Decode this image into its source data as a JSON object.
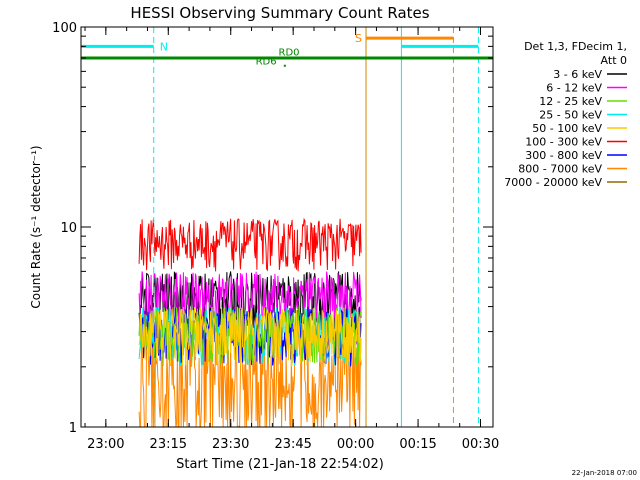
{
  "chart_data": {
    "type": "line",
    "title": "HESSI Observing Summary Count Rates",
    "xlabel": "Start Time (21-Jan-18 22:54:02)",
    "ylabel": "Count Rate (s⁻¹ detector⁻¹)",
    "y_scale": "log",
    "ylim": [
      1,
      100
    ],
    "xlim": [
      "22:54:02",
      "00:33:00"
    ],
    "x_ticks": [
      "23:00",
      "23:15",
      "23:30",
      "23:45",
      "00:00",
      "00:15",
      "00:30"
    ],
    "y_ticks": [
      "1",
      "10",
      "100"
    ],
    "grid": false,
    "legend": {
      "placement": "right",
      "header": [
        "Det 1,3, FDecim 1,",
        "Att 0"
      ],
      "entries": [
        {
          "label": "3 - 6 keV",
          "color": "#000000"
        },
        {
          "label": "6 - 12 keV",
          "color": "#ff00ff"
        },
        {
          "label": "12 - 25 keV",
          "color": "#66dd00"
        },
        {
          "label": "25 - 50 keV",
          "color": "#00eeee"
        },
        {
          "label": "50 - 100 keV",
          "color": "#ffcc00"
        },
        {
          "label": "100 - 300 keV",
          "color": "#ff0000"
        },
        {
          "label": "300 - 800 keV",
          "color": "#0000ff"
        },
        {
          "label": "800 - 7000 keV",
          "color": "#ff8800"
        },
        {
          "label": "7000 - 20000 keV",
          "color": "#996600"
        }
      ]
    },
    "data_interval": {
      "start": "23:08:00",
      "end": "00:01:30"
    },
    "series": [
      {
        "name": "3 - 6 keV",
        "color": "#000000",
        "typical_range": [
          3,
          6
        ]
      },
      {
        "name": "6 - 12 keV",
        "color": "#ff00ff",
        "typical_range": [
          3,
          6
        ]
      },
      {
        "name": "12 - 25 keV",
        "color": "#66dd00",
        "typical_range": [
          2,
          4
        ]
      },
      {
        "name": "25 - 50 keV",
        "color": "#00eeee",
        "typical_range": [
          2,
          4
        ]
      },
      {
        "name": "50 - 100 keV",
        "color": "#ffcc00",
        "typical_range": [
          2,
          4
        ]
      },
      {
        "name": "100 - 300 keV",
        "color": "#ff0000",
        "typical_range": [
          6,
          11
        ]
      },
      {
        "name": "300 - 800 keV",
        "color": "#0000ff",
        "typical_range": [
          2,
          4
        ]
      },
      {
        "name": "800 - 7000 keV",
        "color": "#ff8800",
        "typical_range": [
          1,
          3
        ]
      },
      {
        "name": "7000 - 20000 keV",
        "color": "#996600",
        "typical_range": [
          1,
          1
        ]
      }
    ],
    "markers": {
      "vertical_lines": [
        {
          "time": "22:54:02",
          "color": "#00eeee",
          "style": "solid"
        },
        {
          "time": "23:11:30",
          "color": "#00eeee",
          "style": "dashed"
        },
        {
          "time": "00:02:30",
          "color": "#cc8800",
          "style": "solid"
        },
        {
          "time": "00:11:00",
          "color": "#00eeee",
          "style": "solid"
        },
        {
          "time": "00:23:30",
          "color": "#ff8800",
          "style": "dashed"
        },
        {
          "time": "00:29:30",
          "color": "#00eeee",
          "style": "dashed"
        }
      ],
      "bars": [
        {
          "label": "N",
          "color": "#00eeee",
          "start": "22:54:02",
          "end": "23:11:30",
          "y": 80
        },
        {
          "label": "",
          "color": "#00eeee",
          "start": "00:11:00",
          "end": "00:29:30",
          "y": 80
        },
        {
          "label": "S",
          "color": "#ff8800",
          "start": "00:02:30",
          "end": "00:23:30",
          "y": 88
        },
        {
          "label": "",
          "color": "#008800",
          "start": "22:54:02",
          "end": "00:33:00",
          "y": 70
        }
      ],
      "annotations": [
        {
          "text": "RD0",
          "time": "23:44:00",
          "y": 72,
          "color": "#008800"
        },
        {
          "text": "RD6",
          "time": "23:38:30",
          "y": 65,
          "color": "#008800"
        }
      ]
    },
    "footer_date": "22-Jan-2018 07:00"
  }
}
